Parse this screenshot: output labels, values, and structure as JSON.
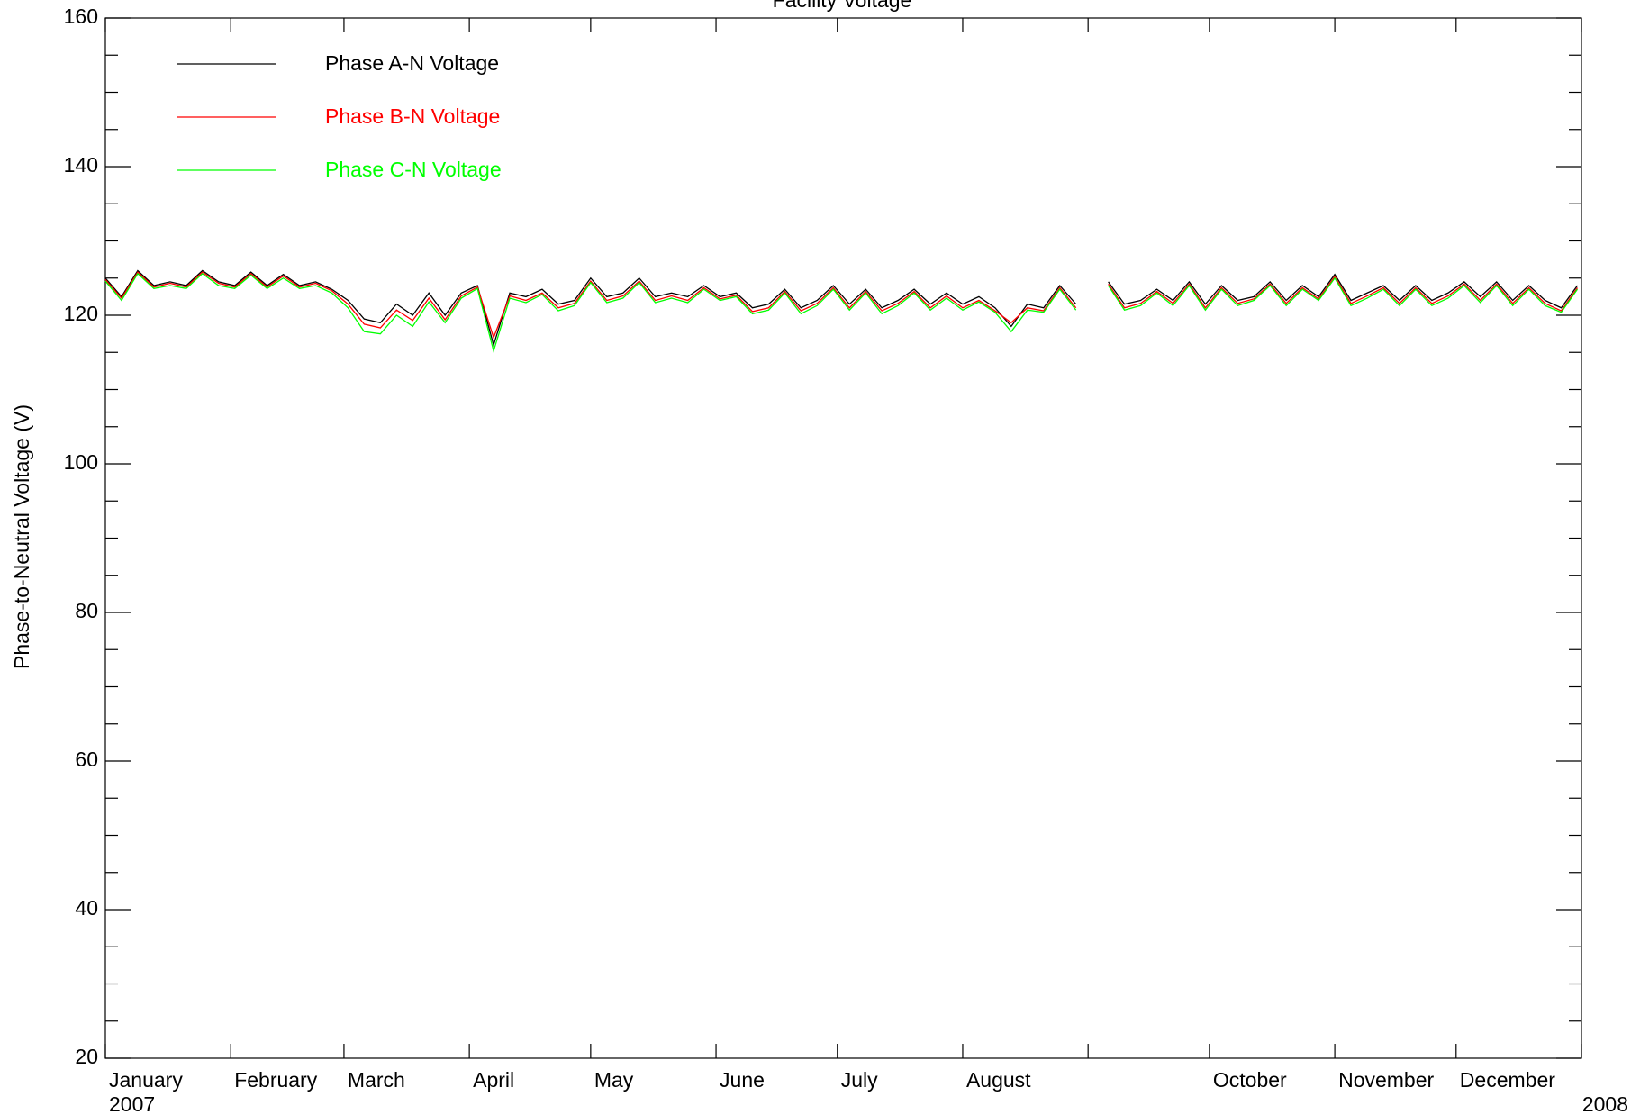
{
  "chart_data": {
    "type": "line",
    "title": "Facility Voltage",
    "y_label": "Phase-to-Neutral Voltage (V)",
    "year_labels": [
      "2007",
      "2008"
    ],
    "x": [
      0,
      4,
      8,
      12,
      16,
      20,
      24,
      28,
      32,
      36,
      40,
      44,
      48,
      52,
      56,
      60,
      64,
      68,
      72,
      76,
      80,
      84,
      88,
      92,
      96,
      100,
      104,
      108,
      112,
      116,
      120,
      124,
      128,
      132,
      136,
      140,
      144,
      148,
      152,
      156,
      160,
      164,
      168,
      172,
      176,
      180,
      184,
      188,
      192,
      196,
      200,
      204,
      208,
      212,
      216,
      220,
      224,
      228,
      232,
      236,
      240,
      244,
      248,
      252,
      256,
      260,
      264,
      268,
      272,
      276,
      280,
      284,
      288,
      292,
      296,
      300,
      304,
      308,
      312,
      316,
      320,
      324,
      328,
      332,
      336,
      340,
      344,
      348,
      352,
      356,
      360,
      364
    ],
    "xlim": [
      0,
      365
    ],
    "xticks": [
      {
        "value": 0,
        "label": "January"
      },
      {
        "value": 31,
        "label": "February"
      },
      {
        "value": 59,
        "label": "March"
      },
      {
        "value": 90,
        "label": "April"
      },
      {
        "value": 120,
        "label": "May"
      },
      {
        "value": 151,
        "label": "June"
      },
      {
        "value": 181,
        "label": "July"
      },
      {
        "value": 212,
        "label": "August"
      },
      {
        "value": 243,
        "label": null
      },
      {
        "value": 273,
        "label": "October"
      },
      {
        "value": 304,
        "label": "November"
      },
      {
        "value": 334,
        "label": "December"
      },
      {
        "value": 365,
        "label": null
      }
    ],
    "ylim": [
      20,
      160
    ],
    "yticks": [
      20,
      40,
      60,
      80,
      100,
      120,
      140,
      160
    ],
    "yminorticks": [
      25,
      30,
      35,
      45,
      50,
      55,
      65,
      70,
      75,
      85,
      90,
      95,
      105,
      110,
      115,
      125,
      130,
      135,
      145,
      150,
      155
    ],
    "legend": "upper left",
    "series": [
      {
        "name": "Phase A-N Voltage",
        "color": "#000000",
        "values": [
          125,
          122.5,
          126,
          124,
          124.5,
          124,
          126,
          124.5,
          124,
          125.8,
          124,
          125.5,
          124,
          124.5,
          123.5,
          122,
          119.5,
          119,
          121.5,
          120,
          123,
          120,
          123,
          124,
          116,
          123,
          122.5,
          123.5,
          121.5,
          122,
          125,
          122.5,
          123,
          125,
          122.5,
          123,
          122.5,
          124,
          122.5,
          123,
          121,
          121.5,
          123.5,
          121,
          122,
          124,
          121.5,
          123.5,
          121,
          122,
          123.5,
          121.5,
          123,
          121.5,
          122.5,
          121,
          118.5,
          121.5,
          121,
          124,
          121.5,
          null,
          124.5,
          121.5,
          122,
          123.5,
          122,
          124.5,
          121.5,
          124,
          122,
          122.5,
          124.5,
          122,
          124,
          122.5,
          125.5,
          122,
          123,
          124,
          122,
          124,
          122,
          123,
          124.5,
          122.5,
          124.5,
          122,
          124,
          122,
          121,
          124
        ]
      },
      {
        "name": "Phase B-N Voltage",
        "color": "#ff0000",
        "values": [
          124.8,
          122.3,
          125.8,
          123.8,
          124.3,
          123.8,
          125.8,
          124.3,
          123.8,
          125.6,
          123.8,
          125.3,
          123.8,
          124.3,
          123.3,
          121.5,
          118.8,
          118.3,
          120.7,
          119.3,
          122.3,
          119.4,
          122.6,
          123.8,
          117,
          122.6,
          122,
          123,
          121,
          121.6,
          124.6,
          122,
          122.6,
          124.6,
          122,
          122.6,
          122,
          123.7,
          122.2,
          122.7,
          120.5,
          121,
          123.2,
          120.6,
          121.6,
          123.7,
          121,
          123.2,
          120.6,
          121.6,
          123.2,
          121,
          122.6,
          121,
          122,
          120.6,
          119,
          121,
          120.6,
          123.7,
          121,
          null,
          124.2,
          121,
          121.6,
          123.2,
          121.6,
          124.2,
          121,
          123.7,
          121.6,
          122.2,
          124.2,
          121.6,
          123.7,
          122.2,
          125.2,
          121.6,
          122.6,
          123.7,
          121.6,
          123.7,
          121.6,
          122.6,
          124.2,
          122,
          124.2,
          121.6,
          123.7,
          121.6,
          120.6,
          123.7
        ]
      },
      {
        "name": "Phase C-N Voltage",
        "color": "#00ff00",
        "values": [
          124.6,
          122,
          125.6,
          123.6,
          124,
          123.6,
          125.6,
          124,
          123.6,
          125.4,
          123.6,
          125,
          123.6,
          124,
          123,
          121,
          117.8,
          117.5,
          120,
          118.5,
          121.8,
          119,
          122.3,
          123.6,
          115.2,
          122.3,
          121.7,
          122.8,
          120.6,
          121.3,
          124.4,
          121.7,
          122.3,
          124.4,
          121.7,
          122.3,
          121.7,
          123.5,
          122,
          122.5,
          120.2,
          120.7,
          123,
          120.2,
          121.3,
          123.5,
          120.7,
          123,
          120.2,
          121.3,
          123,
          120.7,
          122.3,
          120.7,
          121.8,
          120.4,
          117.8,
          120.7,
          120.4,
          123.5,
          120.7,
          null,
          124,
          120.7,
          121.3,
          123,
          121.3,
          124,
          120.7,
          123.5,
          121.3,
          122,
          124,
          121.3,
          123.5,
          122,
          125,
          121.3,
          122.3,
          123.5,
          121.3,
          123.5,
          121.3,
          122.3,
          124,
          121.7,
          124,
          121.3,
          123.5,
          121.3,
          120.4,
          123.5
        ]
      }
    ]
  }
}
